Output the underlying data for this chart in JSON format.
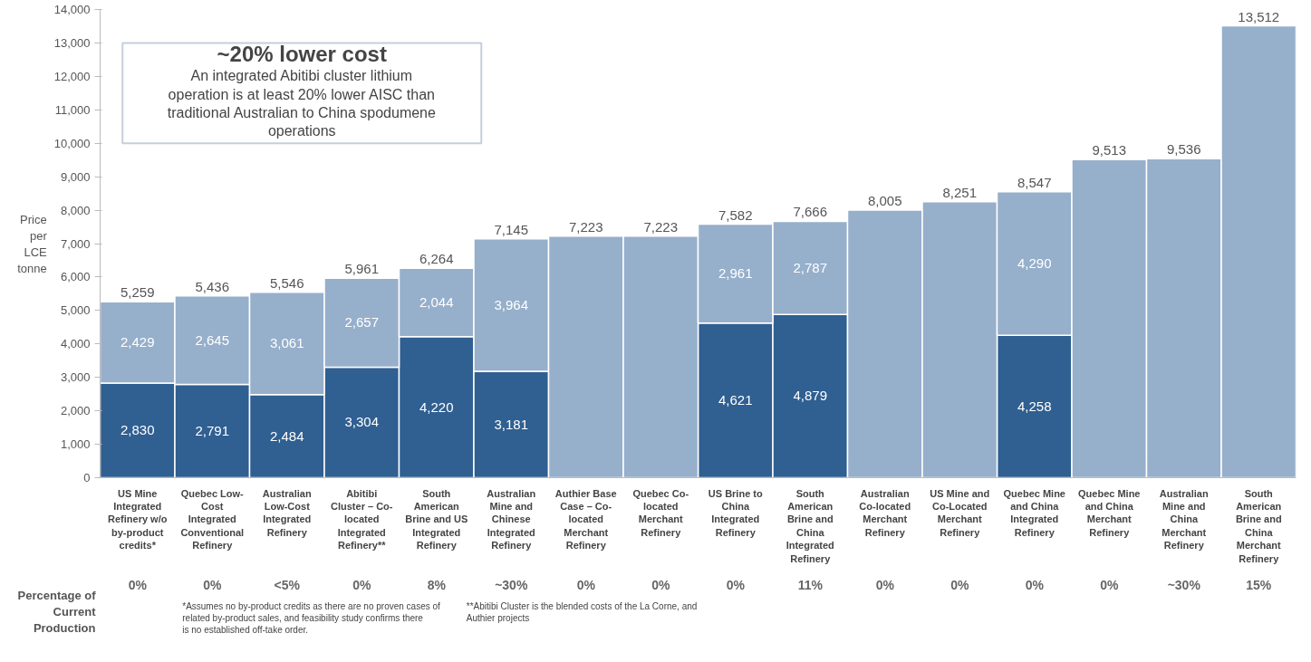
{
  "chart_data": {
    "type": "bar",
    "stacked": true,
    "ylabel": "Price per LCE tonne",
    "categories": [
      "US Mine Integrated Refinery w/o by-product credits*",
      "Quebec Low-Cost Integrated Conventional Refinery",
      "Australian Low-Cost Integrated Refinery",
      "Abitibi Cluster – Co-located Integrated Refinery**",
      "South American Brine and US Integrated Refinery",
      "Australian Mine and Chinese Integrated Refinery",
      "Authier Base Case – Co-located Merchant Refinery",
      "Quebec Co-located Merchant Refinery",
      "US Brine to China Integrated Refinery",
      "South American Brine and China Integrated Refinery",
      "Australian Co-located Merchant Refinery",
      "US Mine and Co-Located Merchant Refinery",
      "Quebec Mine and China Integrated Refinery",
      "Quebec Mine and China Merchant Refinery",
      "Australian Mine and China Merchant Refinery",
      "South American Brine and China Merchant Refinery"
    ],
    "series": [
      {
        "color": "#305f91",
        "values": [
          2830,
          2791,
          2484,
          3304,
          4220,
          3181,
          null,
          null,
          4621,
          4879,
          null,
          null,
          4258,
          null,
          null,
          null
        ],
        "value_labels": [
          "2,830",
          "2,791",
          "2,484",
          "3,304",
          "4,220",
          "3,181",
          null,
          null,
          "4,621",
          "4,879",
          null,
          null,
          "4,258",
          null,
          null,
          null
        ]
      },
      {
        "color": "#96afcb",
        "values": [
          2429,
          2645,
          3061,
          2657,
          2044,
          3964,
          7223,
          7223,
          2961,
          2787,
          8005,
          8251,
          4290,
          9513,
          9536,
          13512
        ],
        "value_labels": [
          "2,429",
          "2,645",
          "3,061",
          "2,657",
          "2,044",
          "3,964",
          null,
          null,
          "2,961",
          "2,787",
          null,
          null,
          "4,290",
          null,
          null,
          null
        ]
      }
    ],
    "totals": [
      "5,259",
      "5,436",
      "5,546",
      "5,961",
      "6,264",
      "7,145",
      "7,223",
      "7,223",
      "7,582",
      "7,666",
      "8,005",
      "8,251",
      "8,547",
      "9,513",
      "9,536",
      "13,512"
    ],
    "ylim": [
      0,
      14000
    ],
    "yticks": [
      {
        "value": 0,
        "label": "0"
      },
      {
        "value": 1000,
        "label": "1,000"
      },
      {
        "value": 2000,
        "label": "2,000"
      },
      {
        "value": 3000,
        "label": "3,000"
      },
      {
        "value": 4000,
        "label": "4,000"
      },
      {
        "value": 5000,
        "label": "5,000"
      },
      {
        "value": 6000,
        "label": "6,000"
      },
      {
        "value": 7000,
        "label": "7,000"
      },
      {
        "value": 8000,
        "label": "8,000"
      },
      {
        "value": 9000,
        "label": "9,000"
      },
      {
        "value": 10000,
        "label": "10,000"
      },
      {
        "value": 11000,
        "label": "11,000"
      },
      {
        "value": 12000,
        "label": "12,000"
      },
      {
        "value": 13000,
        "label": "13,000"
      },
      {
        "value": 14000,
        "label": "14,000"
      }
    ],
    "grid": false,
    "annotations": [
      "~20% lower cost",
      "An integrated Abitibi cluster lithium operation is at least 20% lower AISC than traditional Australian to China spodumene operations",
      "Percentage of Current Production",
      "0%",
      "0%",
      "<5%",
      "0%",
      "8%",
      "~30%",
      "0%",
      "0%",
      "0%",
      "11%",
      "0%",
      "0%",
      "0%",
      "0%",
      "~30%",
      "15%",
      "*Assumes no by-product credits as there are no proven cases of related by-product sales, and feasibility study confirms there is no established off-take order.",
      "**Abitibi Cluster is the blended costs of the La Corne, and Authier projects"
    ]
  }
}
